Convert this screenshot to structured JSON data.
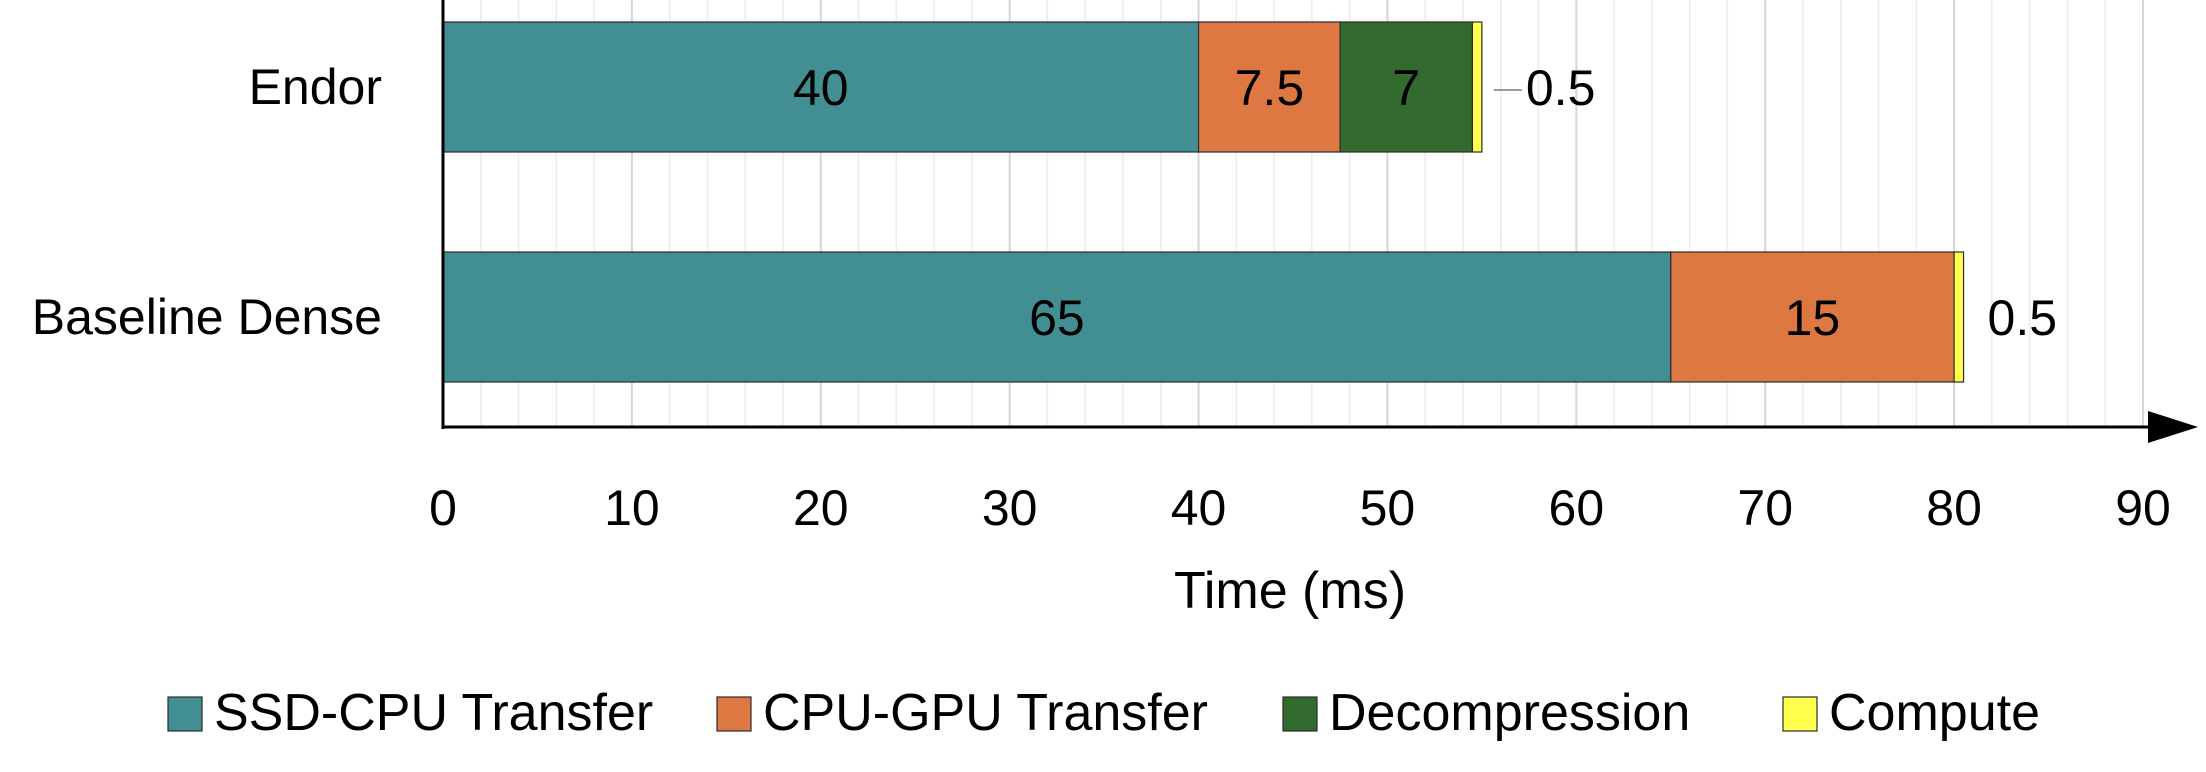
{
  "chart_data": {
    "type": "bar",
    "orientation": "horizontal",
    "stacked": true,
    "categories": [
      "Endor",
      "Baseline Dense"
    ],
    "series": [
      {
        "name": "SSD-CPU Transfer",
        "color": "#428f93",
        "values": [
          40,
          65
        ]
      },
      {
        "name": "CPU-GPU Transfer",
        "color": "#dd7843",
        "values": [
          7.5,
          15
        ]
      },
      {
        "name": "Decompression",
        "color": "#336b2e",
        "values": [
          7,
          0
        ]
      },
      {
        "name": "Compute",
        "color": "#ffff4d",
        "values": [
          0.5,
          0.5
        ]
      }
    ],
    "data_labels": [
      [
        "40",
        "7.5",
        "7",
        "0.5"
      ],
      [
        "65",
        "15",
        "",
        "0.5"
      ]
    ],
    "xlabel": "Time (ms)",
    "ylabel": "",
    "xlim": [
      0,
      90
    ],
    "xticks": [
      0,
      10,
      20,
      30,
      40,
      50,
      60,
      70,
      80,
      90
    ],
    "xtick_labels": [
      "0",
      "10",
      "20",
      "30",
      "40",
      "50",
      "60",
      "70",
      "80",
      "90"
    ],
    "grid": "vertical",
    "legend_position": "bottom"
  }
}
